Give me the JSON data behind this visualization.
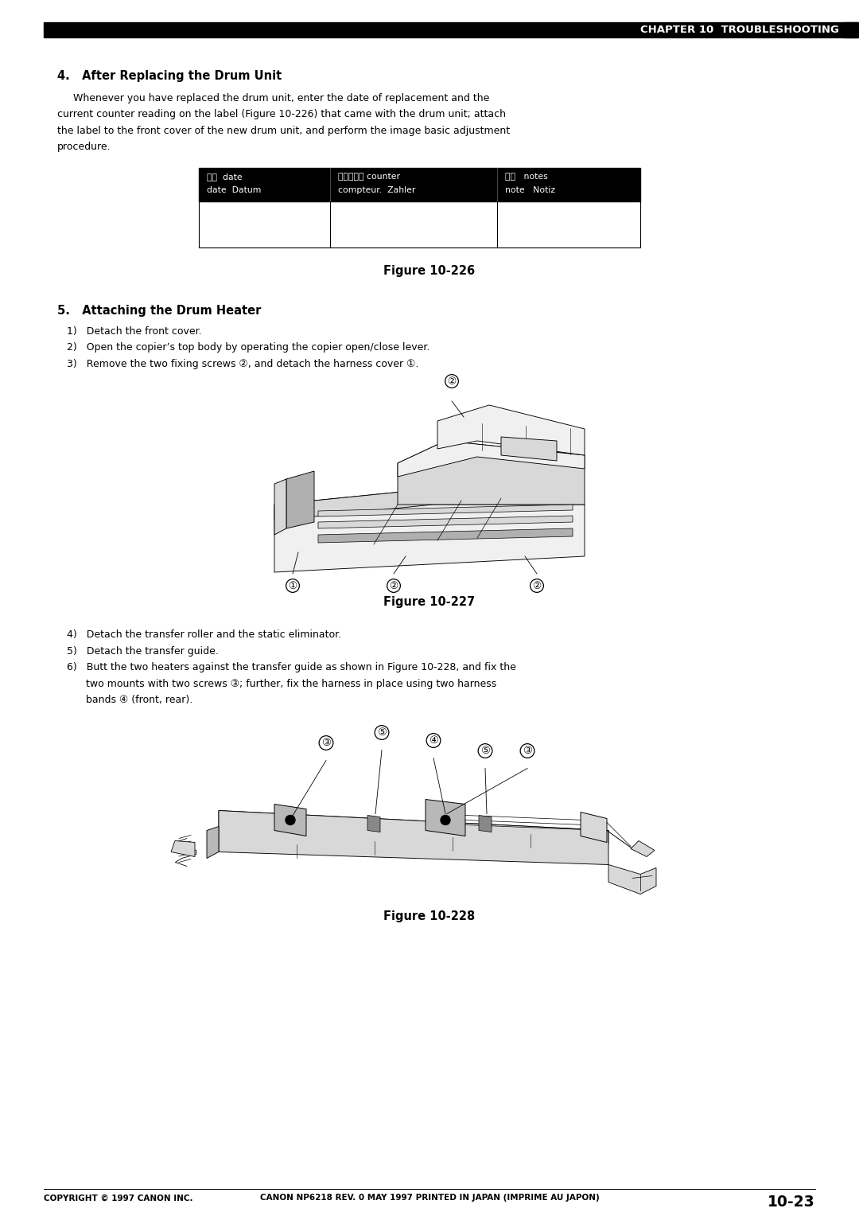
{
  "page_width": 10.8,
  "page_height": 15.28,
  "dpi": 100,
  "bg_color": "#ffffff",
  "header_bar_color": "#000000",
  "header_text": "CHAPTER 10  TROUBLESHOOTING",
  "header_text_color": "#ffffff",
  "section4_title": "4.   After Replacing the Drum Unit",
  "section4_body_line1": "     Whenever you have replaced the drum unit, enter the date of replacement and the",
  "section4_body_line2": "current counter reading on the label (Figure 10-226) that came with the drum unit; attach",
  "section4_body_line3": "the label to the front cover of the new drum unit, and perform the image basic adjustment",
  "section4_body_line4": "procedure.",
  "figure226_caption": "Figure 10-226",
  "table_col1_h1": "日付  date",
  "table_col1_h2": "date  Datum",
  "table_col2_h1": "カウンター counter",
  "table_col2_h2": "compteur.  Zahler",
  "table_col3_h1": "備考   notes",
  "table_col3_h2": "note   Notiz",
  "section5_title": "5.   Attaching the Drum Heater",
  "step1": "1)   Detach the front cover.",
  "step2": "2)   Open the copier’s top body by operating the copier open/close lever.",
  "step3": "3)   Remove the two fixing screws ②, and detach the harness cover ①.",
  "figure227_caption": "Figure 10-227",
  "step4": "4)   Detach the transfer roller and the static eliminator.",
  "step5": "5)   Detach the transfer guide.",
  "step6a": "6)   Butt the two heaters against the transfer guide as shown in Figure 10-228, and fix the",
  "step6b": "      two mounts with two screws ③; further, fix the harness in place using two harness",
  "step6c": "      bands ④ (front, rear).",
  "figure228_caption": "Figure 10-228",
  "footer_left": "COPYRIGHT © 1997 CANON INC.",
  "footer_center": "CANON NP6218 REV. 0 MAY 1997 PRINTED IN JAPAN (IMPRIME AU JAPON)",
  "footer_right": "10-23",
  "lw": 0.7
}
